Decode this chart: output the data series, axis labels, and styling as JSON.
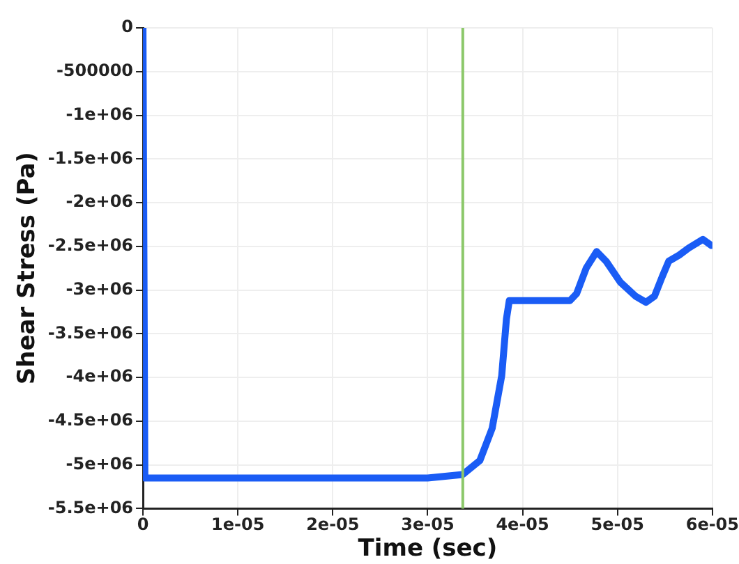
{
  "chart_data": {
    "type": "line",
    "xlabel": "Time (sec)",
    "ylabel": "Shear Stress (Pa)",
    "xlim": [
      0,
      6e-05
    ],
    "ylim": [
      -5500000,
      0
    ],
    "xticks": [
      0,
      {
        "value": 1e-05,
        "label": "1e-05"
      },
      {
        "value": 2e-05,
        "label": "2e-05"
      },
      {
        "value": 3e-05,
        "label": "3e-05"
      },
      {
        "value": 4e-05,
        "label": "4e-05"
      },
      {
        "value": 5e-05,
        "label": "5e-05"
      },
      {
        "value": 6e-05,
        "label": "6e-05"
      }
    ],
    "yticks": [
      0,
      -500000,
      {
        "value": -1000000,
        "label": "-1e+06"
      },
      {
        "value": -1500000,
        "label": "-1.5e+06"
      },
      {
        "value": -2000000,
        "label": "-2e+06"
      },
      {
        "value": -2500000,
        "label": "-2.5e+06"
      },
      {
        "value": -3000000,
        "label": "-3e+06"
      },
      {
        "value": -3500000,
        "label": "-3.5e+06"
      },
      {
        "value": -4000000,
        "label": "-4e+06"
      },
      {
        "value": -4500000,
        "label": "-4.5e+06"
      },
      {
        "value": -5000000,
        "label": "-5e+06"
      },
      {
        "value": -5500000,
        "label": "-5.5e+06"
      }
    ],
    "grid": true,
    "legend": false,
    "marker": "none",
    "line_style": "solid",
    "ref_lines": [
      {
        "axis": "x",
        "value": 3.37e-05,
        "color": "#8cc86a"
      }
    ],
    "series": [
      {
        "color": "#1a5cf5",
        "x": [
          0,
          2e-07,
          1e-05,
          2e-05,
          3e-05,
          3.37e-05,
          3.55e-05,
          3.68e-05,
          3.78e-05,
          3.83e-05,
          3.86e-05,
          4.5e-05,
          4.57e-05,
          4.67e-05,
          4.78e-05,
          4.88e-05,
          5.03e-05,
          5.19e-05,
          5.3e-05,
          5.39e-05,
          5.47e-05,
          5.54e-05,
          5.65e-05,
          5.75e-05,
          5.9e-05,
          5.99e-05
        ],
        "values": [
          0,
          -5150000,
          -5150000,
          -5150000,
          -5150000,
          -5110000,
          -4950000,
          -4580000,
          -3980000,
          -3330000,
          -3120000,
          -3120000,
          -3040000,
          -2750000,
          -2560000,
          -2670000,
          -2910000,
          -3070000,
          -3140000,
          -3070000,
          -2850000,
          -2670000,
          -2600000,
          -2520000,
          -2420000,
          -2490000
        ]
      }
    ]
  }
}
